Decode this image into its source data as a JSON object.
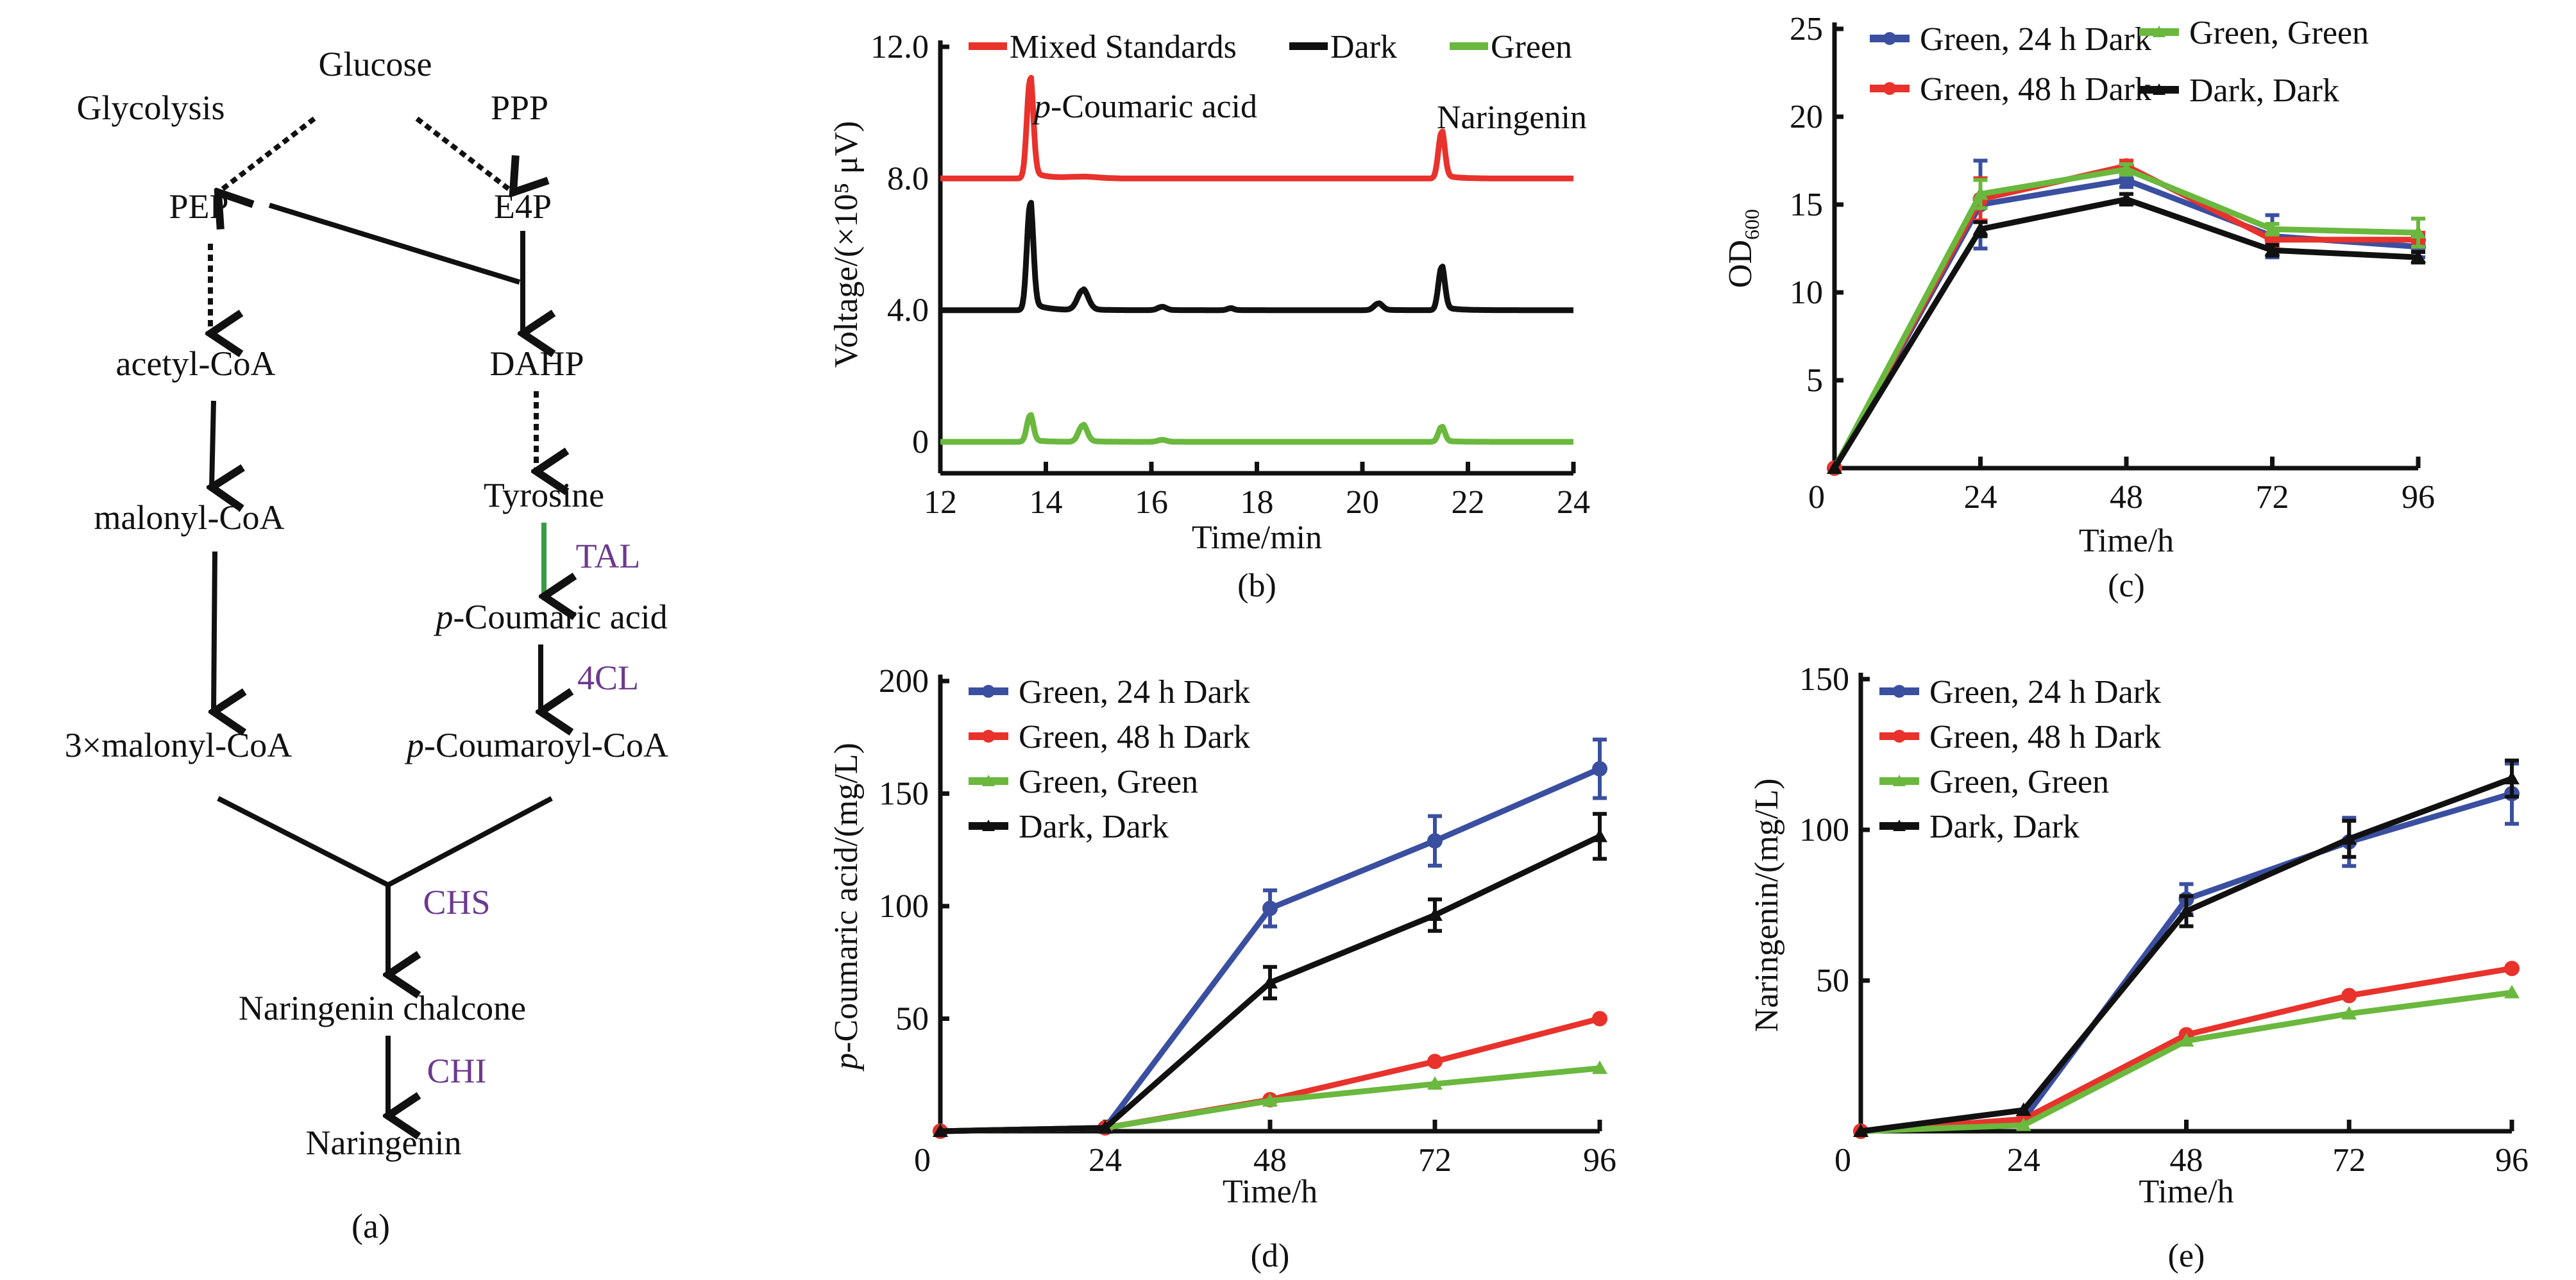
{
  "colors": {
    "red": "#e8322b",
    "black": "#111111",
    "green": "#6ab83e",
    "blue": "#3a4fa0",
    "purple": "#6b3a8c",
    "arrow_green": "#3a9a45"
  },
  "pathway": {
    "caption": "(a)",
    "nodes": {
      "glucose": "Glucose",
      "glycolysis": "Glycolysis",
      "ppp": "PPP",
      "pep": "PEP",
      "e4p": "E4P",
      "acetyl_coa": "acetyl-CoA",
      "dahp": "DAHP",
      "malonyl_coa": "malonyl-CoA",
      "tyrosine": "Tyrosine",
      "p_coumaric_prefix": "p",
      "p_coumaric_rest": "-Coumaric acid",
      "three_malonyl": "3×malonyl-CoA",
      "p_coumaroyl_prefix": "p",
      "p_coumaroyl_rest": "-Coumaroyl-CoA",
      "chalcone": "Naringenin chalcone",
      "naringenin": "Naringenin"
    },
    "enzymes": {
      "tal": "TAL",
      "fourcl": "4CL",
      "chs": "CHS",
      "chi": "CHI"
    }
  },
  "chart_data": [
    {
      "id": "b",
      "type": "line",
      "caption": "(b)",
      "xlabel": "Time/min",
      "ylabel": "Voltage/(×10⁵ μV)",
      "xlim": [
        12,
        24
      ],
      "ylim": [
        0,
        12
      ],
      "xticks": [
        12,
        14,
        16,
        18,
        20,
        22,
        24
      ],
      "yticks": [
        "0",
        "4.0",
        "8.0",
        "12.0"
      ],
      "ytick_values": [
        0,
        4,
        8,
        12
      ],
      "legend": [
        "Mixed Standards",
        "Dark",
        "Green"
      ],
      "legend_position": "top",
      "annotations": [
        {
          "text_prefix": "p",
          "text": "-Coumaric acid",
          "x": 13.7
        },
        {
          "text": "Naringenin",
          "x": 21.5
        }
      ],
      "series": [
        {
          "name": "Mixed Standards",
          "color": "red",
          "baseline": 8.0,
          "peaks": [
            [
              13.7,
              3.0,
              0.06
            ],
            [
              14.7,
              0.05,
              0.3
            ],
            [
              21.5,
              1.4,
              0.06
            ]
          ]
        },
        {
          "name": "Dark",
          "color": "black",
          "baseline": 4.0,
          "peaks": [
            [
              13.7,
              3.2,
              0.06
            ],
            [
              14.7,
              0.6,
              0.1
            ],
            [
              16.2,
              0.1,
              0.08
            ],
            [
              17.5,
              0.06,
              0.06
            ],
            [
              20.3,
              0.2,
              0.08
            ],
            [
              21.5,
              1.3,
              0.06
            ]
          ]
        },
        {
          "name": "Green",
          "color": "green",
          "baseline": 0.0,
          "peaks": [
            [
              13.7,
              0.8,
              0.06
            ],
            [
              14.7,
              0.5,
              0.08
            ],
            [
              16.2,
              0.06,
              0.08
            ],
            [
              21.5,
              0.45,
              0.06
            ]
          ]
        }
      ]
    },
    {
      "id": "c",
      "type": "line",
      "caption": "(c)",
      "xlabel": "Time/h",
      "ylabel": "OD",
      "ylabel_sub": "600",
      "xlim": [
        0,
        96
      ],
      "ylim": [
        0,
        25
      ],
      "x": [
        0,
        24,
        48,
        72,
        96
      ],
      "xticks": [
        0,
        24,
        48,
        72,
        96
      ],
      "yticks": [
        5,
        10,
        15,
        20,
        25
      ],
      "legend_position": "top",
      "series": [
        {
          "name": "Green, 24 h Dark",
          "color": "blue",
          "values": [
            0,
            15.0,
            16.4,
            13.2,
            12.6
          ],
          "err": [
            0,
            2.5,
            0.4,
            1.2,
            0.6
          ]
        },
        {
          "name": "Green, 48 h Dark",
          "color": "red",
          "values": [
            0,
            15.3,
            17.2,
            13.0,
            13.0
          ],
          "err": [
            0,
            1.2,
            0.3,
            0.4,
            0.4
          ]
        },
        {
          "name": "Green, Green",
          "color": "green",
          "values": [
            0,
            15.6,
            17.0,
            13.6,
            13.4
          ],
          "err": [
            0,
            0.8,
            0.3,
            0.3,
            0.8
          ]
        },
        {
          "name": "Dark, Dark",
          "color": "black",
          "values": [
            0,
            13.6,
            15.3,
            12.4,
            12.0
          ],
          "err": [
            0,
            0.4,
            0.3,
            0.3,
            0.3
          ]
        }
      ]
    },
    {
      "id": "d",
      "type": "line",
      "caption": "(d)",
      "xlabel": "Time/h",
      "ylabel_prefix": "p",
      "ylabel": "-Coumaric acid/(mg/L)",
      "xlim": [
        0,
        96
      ],
      "ylim": [
        0,
        200
      ],
      "x": [
        0,
        24,
        48,
        72,
        96
      ],
      "xticks": [
        0,
        24,
        48,
        72,
        96
      ],
      "yticks": [
        50,
        100,
        150,
        200
      ],
      "legend_position": "top-left",
      "series": [
        {
          "name": "Green, 24 h Dark",
          "color": "blue",
          "values": [
            0,
            1.5,
            99,
            129,
            161
          ],
          "err": [
            0,
            0,
            8,
            11,
            13
          ]
        },
        {
          "name": "Green, 48 h Dark",
          "color": "red",
          "values": [
            0,
            1.5,
            14,
            31,
            50
          ],
          "err": [
            0,
            0,
            0,
            0,
            0
          ]
        },
        {
          "name": "Green, Green",
          "color": "green",
          "values": [
            0,
            1.5,
            13.5,
            21,
            28
          ],
          "err": [
            0,
            0,
            0,
            0,
            0
          ]
        },
        {
          "name": "Dark, Dark",
          "color": "black",
          "values": [
            0,
            1.5,
            66,
            96,
            131
          ],
          "err": [
            0,
            0,
            7,
            7,
            10
          ]
        }
      ]
    },
    {
      "id": "e",
      "type": "line",
      "caption": "(e)",
      "xlabel": "Time/h",
      "ylabel": "Naringenin/(mg/L)",
      "xlim": [
        0,
        96
      ],
      "ylim": [
        0,
        150
      ],
      "x": [
        0,
        24,
        48,
        72,
        96
      ],
      "xticks": [
        0,
        24,
        48,
        72,
        96
      ],
      "yticks": [
        50,
        100,
        150
      ],
      "legend_position": "top-left",
      "series": [
        {
          "name": "Green, 24 h Dark",
          "color": "blue",
          "values": [
            0,
            4,
            77,
            96,
            112
          ],
          "err": [
            0,
            0,
            5,
            8,
            10
          ]
        },
        {
          "name": "Green, 48 h Dark",
          "color": "red",
          "values": [
            0,
            4,
            32,
            45,
            54
          ],
          "err": [
            0,
            0,
            0,
            0,
            0
          ]
        },
        {
          "name": "Green, Green",
          "color": "green",
          "values": [
            0,
            2,
            30,
            39,
            46
          ],
          "err": [
            0,
            0,
            0,
            0,
            0
          ]
        },
        {
          "name": "Dark, Dark",
          "color": "black",
          "values": [
            0,
            7,
            73,
            97,
            117
          ],
          "err": [
            0,
            0,
            5,
            6,
            6
          ]
        }
      ]
    }
  ]
}
